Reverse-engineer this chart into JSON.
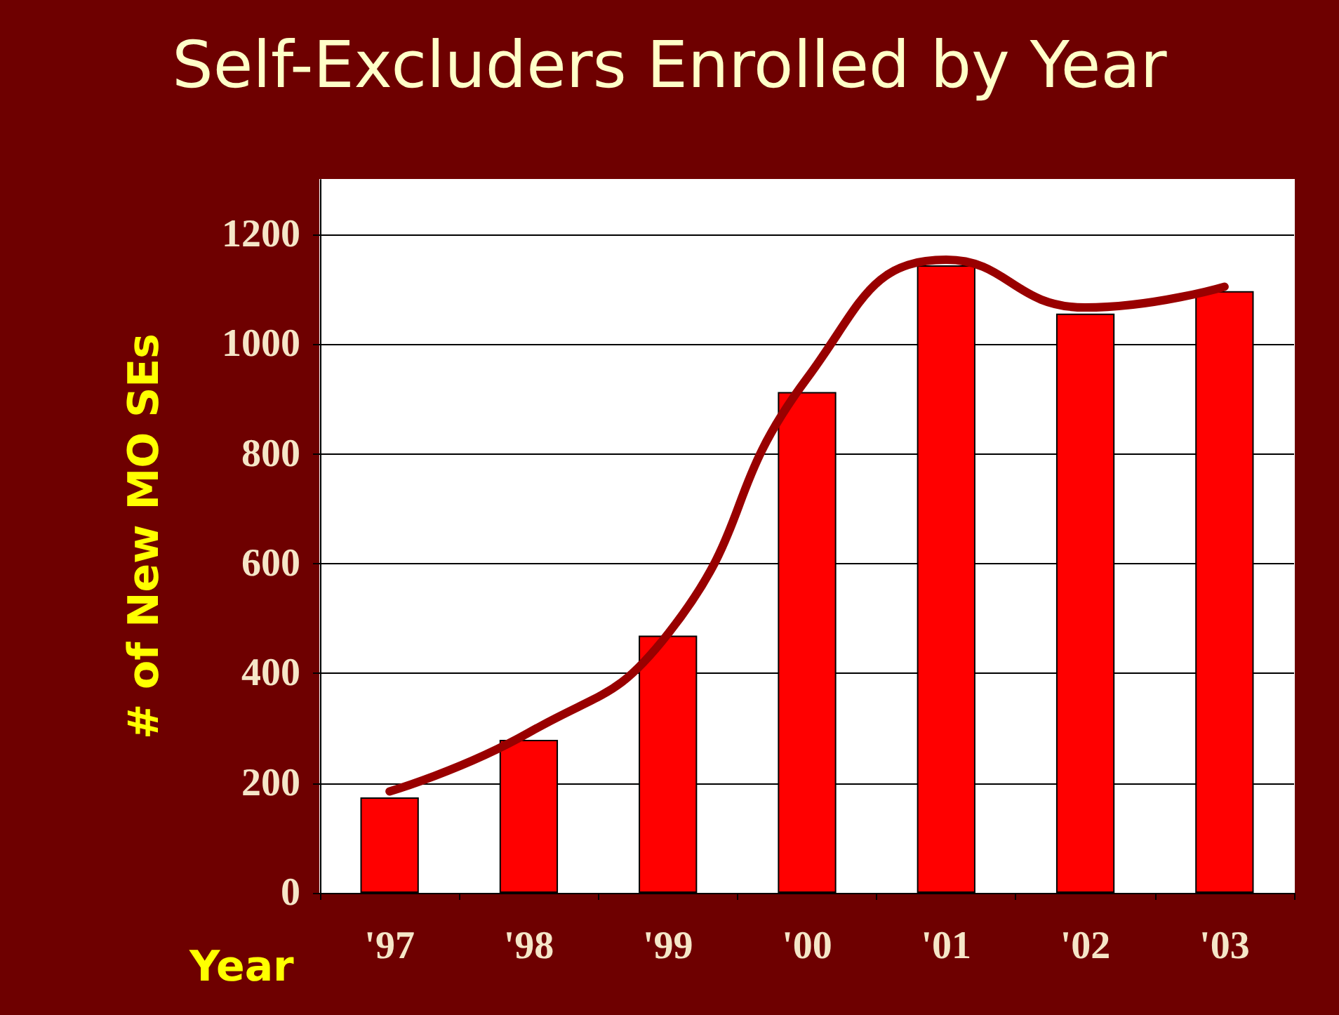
{
  "chart_data": {
    "type": "bar",
    "title": "Self-Excluders Enrolled by Year",
    "xlabel": "Year",
    "ylabel": "# of New MO SEs",
    "categories": [
      "'97",
      "'98",
      "'99",
      "'00",
      "'01",
      "'02",
      "'03"
    ],
    "series": [
      {
        "color": "#ff0000",
        "values": [
          174,
          279,
          469,
          913,
          1144,
          1056,
          1097
        ]
      },
      {
        "type": "line",
        "color": "#990000",
        "x": [
          "'97",
          "'98",
          "'99",
          "'00",
          "'01",
          "'02",
          "'03"
        ],
        "values": [
          185,
          292,
          472,
          938,
          1154,
          1067,
          1105
        ]
      }
    ],
    "ylim": [
      0,
      1300
    ],
    "yticks": [
      0,
      200,
      400,
      600,
      800,
      1000,
      1200
    ],
    "grid": "y",
    "marker": "none",
    "line_style": "solid"
  }
}
